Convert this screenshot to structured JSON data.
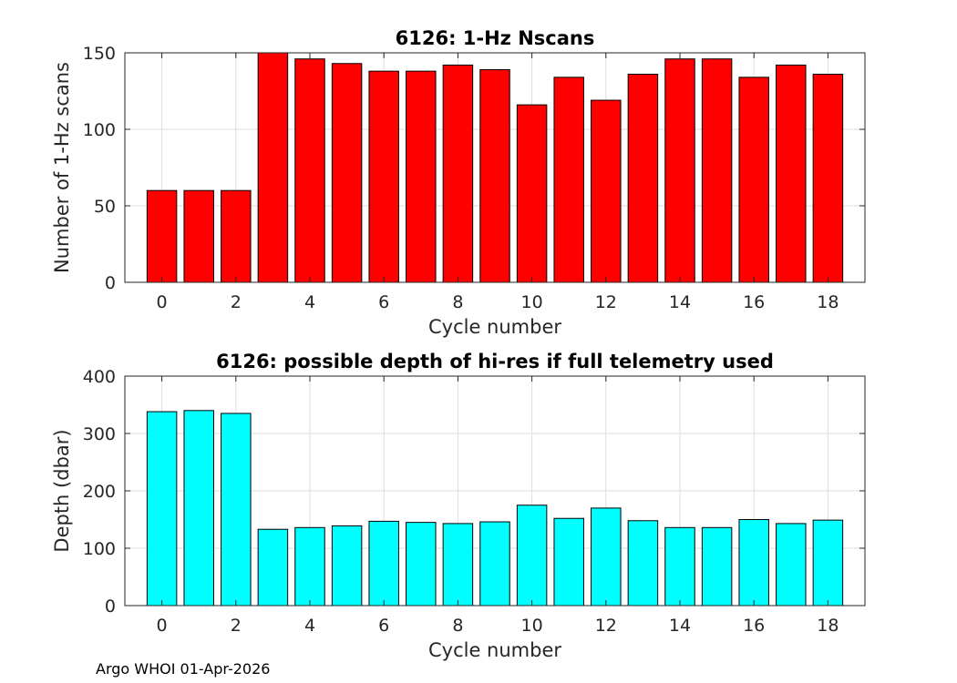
{
  "chart_data": [
    {
      "type": "bar",
      "title": "6126: 1-Hz Nscans",
      "xlabel": "Cycle number",
      "ylabel": "Number of 1-Hz scans",
      "categories": [
        0,
        1,
        2,
        3,
        4,
        5,
        6,
        7,
        8,
        9,
        10,
        11,
        12,
        13,
        14,
        15,
        16,
        17,
        18
      ],
      "values": [
        60,
        60,
        60,
        150,
        146,
        143,
        138,
        138,
        142,
        139,
        116,
        134,
        119,
        136,
        146,
        146,
        134,
        142,
        136
      ],
      "xlim": [
        -1,
        19
      ],
      "ylim": [
        0,
        150
      ],
      "xticks": [
        0,
        2,
        4,
        6,
        8,
        10,
        12,
        14,
        16,
        18
      ],
      "yticks": [
        0,
        50,
        100,
        150
      ],
      "bar_color": "#ff0000",
      "grid": true
    },
    {
      "type": "bar",
      "title": "6126: possible depth of hi-res if full telemetry used",
      "xlabel": "Cycle number",
      "ylabel": "Depth (dbar)",
      "categories": [
        0,
        1,
        2,
        3,
        4,
        5,
        6,
        7,
        8,
        9,
        10,
        11,
        12,
        13,
        14,
        15,
        16,
        17,
        18
      ],
      "values": [
        338,
        340,
        335,
        133,
        136,
        139,
        147,
        145,
        143,
        146,
        175,
        152,
        170,
        148,
        136,
        136,
        150,
        143,
        149
      ],
      "xlim": [
        -1,
        19
      ],
      "ylim": [
        0,
        400
      ],
      "xticks": [
        0,
        2,
        4,
        6,
        8,
        10,
        12,
        14,
        16,
        18
      ],
      "yticks": [
        0,
        100,
        200,
        300,
        400
      ],
      "bar_color": "#00ffff",
      "grid": true
    }
  ],
  "footer": "Argo WHOI 01-Apr-2026"
}
